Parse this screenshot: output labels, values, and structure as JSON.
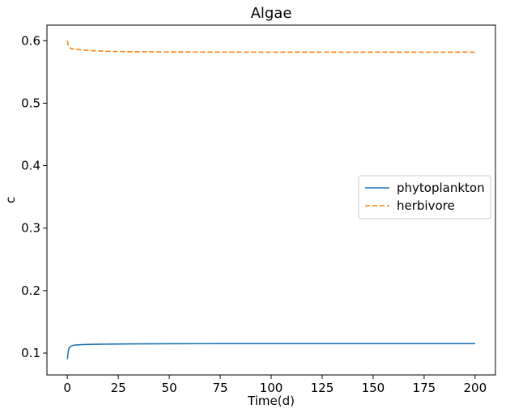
{
  "chart_data": {
    "type": "line",
    "title": "Algae",
    "xlabel": "Time(d)",
    "ylabel": "c",
    "xlim": [
      -10,
      210
    ],
    "ylim": [
      0.065,
      0.625
    ],
    "xticks": [
      0,
      25,
      50,
      75,
      100,
      125,
      150,
      175,
      200
    ],
    "xtick_labels": [
      "0",
      "25",
      "50",
      "75",
      "100",
      "125",
      "150",
      "175",
      "200"
    ],
    "yticks": [
      0.1,
      0.2,
      0.3,
      0.4,
      0.5,
      0.6
    ],
    "ytick_labels": [
      "0.1",
      "0.2",
      "0.3",
      "0.4",
      "0.5",
      "0.6"
    ],
    "grid": false,
    "legend": {
      "position": "center-right"
    },
    "series": [
      {
        "name": "phytoplankton",
        "color": "#1f77b4",
        "dash": "solid",
        "x": [
          0,
          0.5,
          1,
          2,
          3,
          5,
          8,
          12,
          20,
          30,
          50,
          75,
          100,
          125,
          150,
          175,
          200
        ],
        "y": [
          0.09,
          0.104,
          0.109,
          0.1115,
          0.1125,
          0.1132,
          0.1137,
          0.114,
          0.1144,
          0.1147,
          0.115,
          0.1151,
          0.1152,
          0.1152,
          0.1152,
          0.1152,
          0.1152
        ]
      },
      {
        "name": "herbivore",
        "color": "#ff7f0e",
        "dash": "dashed",
        "x": [
          0,
          0.5,
          1,
          2,
          3,
          5,
          8,
          12,
          20,
          30,
          50,
          75,
          100,
          125,
          150,
          175,
          200
        ],
        "y": [
          0.6,
          0.592,
          0.589,
          0.5875,
          0.5868,
          0.586,
          0.585,
          0.584,
          0.583,
          0.5825,
          0.582,
          0.5818,
          0.5817,
          0.5817,
          0.5817,
          0.5817,
          0.5817
        ]
      }
    ]
  }
}
